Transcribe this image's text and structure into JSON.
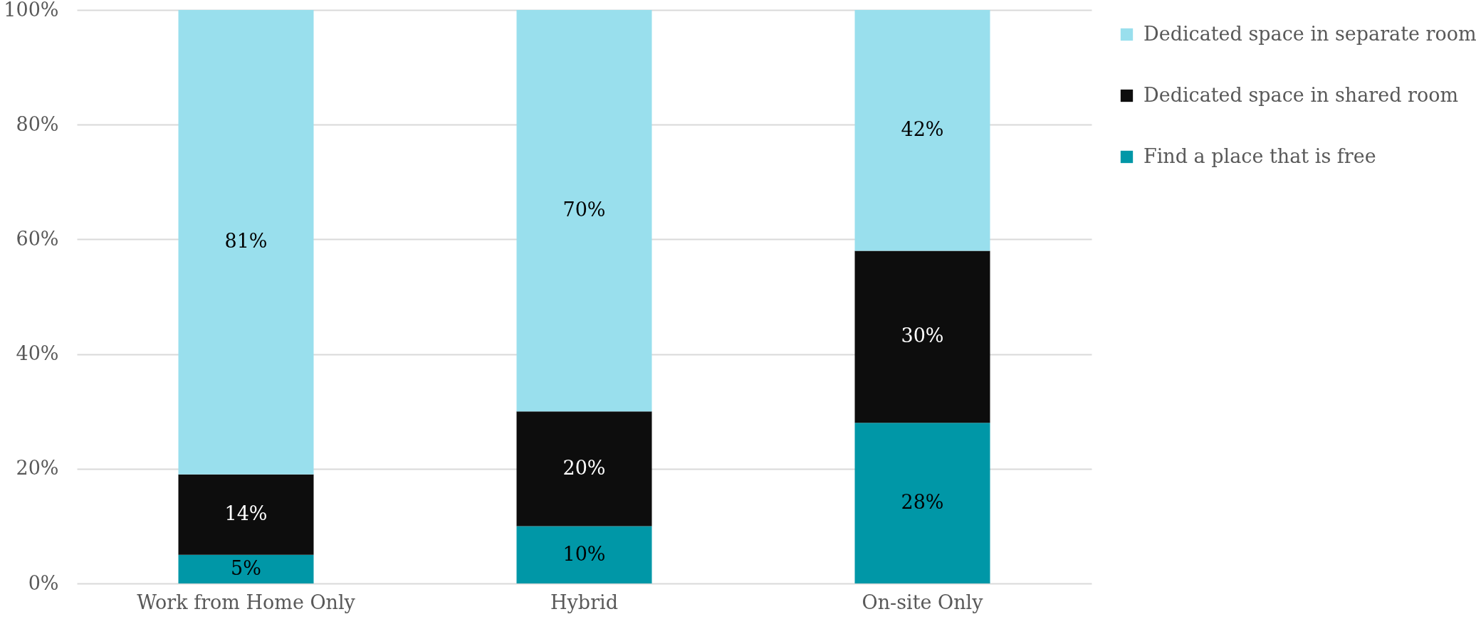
{
  "chart_data": {
    "type": "bar",
    "stacked": true,
    "categories": [
      "Work from Home Only",
      "Hybrid",
      "On-site Only"
    ],
    "series": [
      {
        "name": "Find a place that is free",
        "color": "#0097a7",
        "values": [
          5,
          10,
          28
        ],
        "value_labels": [
          "5%",
          "10%",
          "28%"
        ]
      },
      {
        "name": "Dedicated space in shared room",
        "color": "#0d0d0d",
        "values": [
          14,
          20,
          30
        ],
        "value_labels": [
          "14%",
          "20%",
          "30%"
        ]
      },
      {
        "name": "Dedicated space in separate room",
        "color": "#99dfed",
        "values": [
          81,
          70,
          42
        ],
        "value_labels": [
          "81%",
          "70%",
          "42%"
        ]
      }
    ],
    "ylim": [
      0,
      100
    ],
    "yticks": [
      {
        "value": 0,
        "label": "0%"
      },
      {
        "value": 20,
        "label": "20%"
      },
      {
        "value": 40,
        "label": "40%"
      },
      {
        "value": 60,
        "label": "60%"
      },
      {
        "value": 80,
        "label": "80%"
      },
      {
        "value": 100,
        "label": "100%"
      }
    ],
    "grid": "y",
    "legend": "top right"
  }
}
